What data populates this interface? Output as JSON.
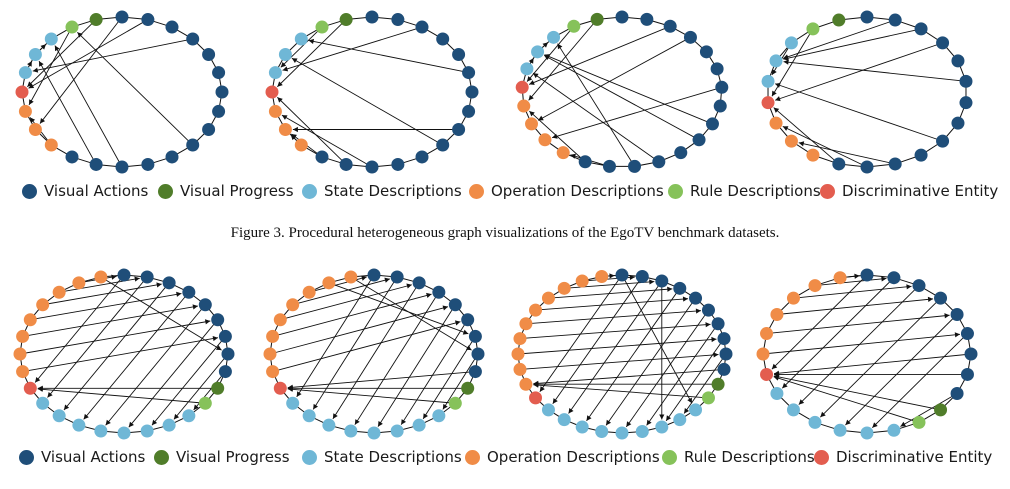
{
  "figure_caption": {
    "label": "Figure 3.",
    "text": "Procedural heterogeneous graph visualizations of the EgoTV benchmark datasets."
  },
  "colors": {
    "visual_actions": "#1f4e79",
    "visual_progress": "#507d2a",
    "state_descriptions": "#6fb7d6",
    "operation_descriptions": "#f08c47",
    "rule_descriptions": "#86c25a",
    "discriminative_entity": "#e35d4f",
    "edge": "#111111"
  },
  "legend_top": [
    {
      "key": "visual_actions",
      "label": "Visual Actions"
    },
    {
      "key": "visual_progress",
      "label": "Visual Progress"
    },
    {
      "key": "state_descriptions",
      "label": "State Descriptions"
    },
    {
      "key": "operation_descriptions",
      "label": "Operation Descriptions"
    },
    {
      "key": "rule_descriptions",
      "label": "Rule Descriptions"
    },
    {
      "key": "discriminative_entity",
      "label": "Discriminative Entity"
    }
  ],
  "legend_bottom": [
    {
      "key": "visual_actions",
      "label": "Visual Actions"
    },
    {
      "key": "visual_progress",
      "label": "Visual Progress"
    },
    {
      "key": "state_descriptions",
      "label": "State Descriptions"
    },
    {
      "key": "operation_descriptions",
      "label": "Operation Descriptions"
    },
    {
      "key": "rule_descriptions",
      "label": "Rule Descriptions"
    },
    {
      "key": "discriminative_entity",
      "label": "Discriminative Entity"
    }
  ],
  "graphs_top": [
    {
      "groups": [
        [
          "visual_actions",
          15
        ],
        [
          "operation_descriptions",
          3
        ],
        [
          "discriminative_entity",
          1
        ],
        [
          "state_descriptions",
          3
        ],
        [
          "rule_descriptions",
          1
        ],
        [
          "visual_progress",
          1
        ]
      ],
      "edges": [
        [
          3,
          19
        ],
        [
          9,
          22
        ],
        [
          13,
          20
        ],
        [
          1,
          18
        ],
        [
          12,
          21
        ],
        [
          15,
          17
        ],
        [
          23,
          18
        ],
        [
          22,
          17
        ],
        [
          0,
          16
        ],
        [
          19,
          20
        ],
        [
          20,
          21
        ]
      ]
    },
    {
      "groups": [
        [
          "visual_actions",
          15
        ],
        [
          "operation_descriptions",
          3
        ],
        [
          "discriminative_entity",
          1
        ],
        [
          "state_descriptions",
          3
        ],
        [
          "rule_descriptions",
          1
        ],
        [
          "visual_progress",
          1
        ]
      ],
      "edges": [
        [
          2,
          19
        ],
        [
          5,
          21
        ],
        [
          9,
          20
        ],
        [
          12,
          17
        ],
        [
          13,
          18
        ],
        [
          8,
          16
        ],
        [
          23,
          18
        ],
        [
          22,
          19
        ],
        [
          14,
          16
        ],
        [
          15,
          16
        ]
      ]
    },
    {
      "groups": [
        [
          "visual_actions",
          15
        ],
        [
          "operation_descriptions",
          4
        ],
        [
          "discriminative_entity",
          1
        ],
        [
          "state_descriptions",
          3
        ],
        [
          "rule_descriptions",
          1
        ],
        [
          "visual_progress",
          1
        ]
      ],
      "edges": [
        [
          2,
          19
        ],
        [
          3,
          17
        ],
        [
          6,
          16
        ],
        [
          9,
          21
        ],
        [
          11,
          20
        ],
        [
          12,
          22
        ],
        [
          13,
          15
        ],
        [
          14,
          18
        ],
        [
          8,
          21
        ],
        [
          24,
          18
        ],
        [
          23,
          19
        ],
        [
          20,
          21
        ],
        [
          21,
          22
        ]
      ]
    },
    {
      "groups": [
        [
          "visual_actions",
          13
        ],
        [
          "operation_descriptions",
          3
        ],
        [
          "discriminative_entity",
          1
        ],
        [
          "state_descriptions",
          3
        ],
        [
          "rule_descriptions",
          1
        ],
        [
          "visual_progress",
          1
        ]
      ],
      "edges": [
        [
          3,
          16
        ],
        [
          5,
          18
        ],
        [
          8,
          17
        ],
        [
          1,
          18
        ],
        [
          10,
          14
        ],
        [
          11,
          15
        ],
        [
          2,
          18
        ],
        [
          20,
          16
        ],
        [
          19,
          17
        ],
        [
          12,
          16
        ]
      ]
    }
  ],
  "graphs_bottom": [
    {
      "groups": [
        [
          "visual_actions",
          9
        ],
        [
          "visual_progress",
          1
        ],
        [
          "rule_descriptions",
          1
        ],
        [
          "state_descriptions",
          8
        ],
        [
          "discriminative_entity",
          1
        ],
        [
          "operation_descriptions",
          8
        ]
      ],
      "edges": [
        [
          0,
          19
        ],
        [
          1,
          18
        ],
        [
          2,
          17
        ],
        [
          3,
          16
        ],
        [
          4,
          15
        ],
        [
          5,
          14
        ],
        [
          6,
          13
        ],
        [
          7,
          12
        ],
        [
          8,
          11
        ],
        [
          9,
          19
        ],
        [
          10,
          19
        ],
        [
          20,
          6
        ],
        [
          21,
          5
        ],
        [
          22,
          4
        ],
        [
          23,
          3
        ],
        [
          24,
          2
        ],
        [
          25,
          1
        ],
        [
          26,
          0
        ],
        [
          27,
          7
        ]
      ]
    },
    {
      "groups": [
        [
          "visual_actions",
          9
        ],
        [
          "visual_progress",
          1
        ],
        [
          "rule_descriptions",
          1
        ],
        [
          "state_descriptions",
          8
        ],
        [
          "discriminative_entity",
          1
        ],
        [
          "operation_descriptions",
          8
        ]
      ],
      "edges": [
        [
          0,
          18
        ],
        [
          1,
          17
        ],
        [
          2,
          16
        ],
        [
          3,
          15
        ],
        [
          4,
          14
        ],
        [
          5,
          13
        ],
        [
          6,
          12
        ],
        [
          7,
          11
        ],
        [
          8,
          19
        ],
        [
          9,
          19
        ],
        [
          10,
          19
        ],
        [
          20,
          5
        ],
        [
          21,
          4
        ],
        [
          22,
          3
        ],
        [
          23,
          2
        ],
        [
          24,
          1
        ],
        [
          25,
          0
        ],
        [
          26,
          6
        ],
        [
          27,
          7
        ]
      ]
    },
    {
      "groups": [
        [
          "visual_actions",
          10
        ],
        [
          "visual_progress",
          1
        ],
        [
          "rule_descriptions",
          1
        ],
        [
          "state_descriptions",
          9
        ],
        [
          "discriminative_entity",
          1
        ],
        [
          "operation_descriptions",
          10
        ]
      ],
      "edges": [
        [
          0,
          21
        ],
        [
          1,
          20
        ],
        [
          2,
          19
        ],
        [
          3,
          18
        ],
        [
          4,
          17
        ],
        [
          5,
          16
        ],
        [
          6,
          15
        ],
        [
          7,
          14
        ],
        [
          8,
          13
        ],
        [
          9,
          22
        ],
        [
          10,
          22
        ],
        [
          11,
          22
        ],
        [
          23,
          8
        ],
        [
          24,
          7
        ],
        [
          25,
          6
        ],
        [
          26,
          5
        ],
        [
          27,
          4
        ],
        [
          28,
          3
        ],
        [
          29,
          2
        ],
        [
          30,
          1
        ],
        [
          31,
          0
        ],
        [
          32,
          9
        ],
        [
          0,
          12
        ],
        [
          2,
          14
        ]
      ]
    },
    {
      "groups": [
        [
          "visual_actions",
          9
        ],
        [
          "visual_progress",
          1
        ],
        [
          "rule_descriptions",
          1
        ],
        [
          "state_descriptions",
          6
        ],
        [
          "discriminative_entity",
          1
        ],
        [
          "operation_descriptions",
          6
        ]
      ],
      "edges": [
        [
          0,
          17
        ],
        [
          1,
          16
        ],
        [
          2,
          15
        ],
        [
          3,
          14
        ],
        [
          4,
          13
        ],
        [
          5,
          12
        ],
        [
          6,
          17
        ],
        [
          7,
          17
        ],
        [
          8,
          11
        ],
        [
          9,
          17
        ],
        [
          10,
          17
        ],
        [
          18,
          5
        ],
        [
          19,
          4
        ],
        [
          20,
          3
        ],
        [
          21,
          2
        ],
        [
          22,
          1
        ],
        [
          23,
          0
        ]
      ]
    }
  ]
}
